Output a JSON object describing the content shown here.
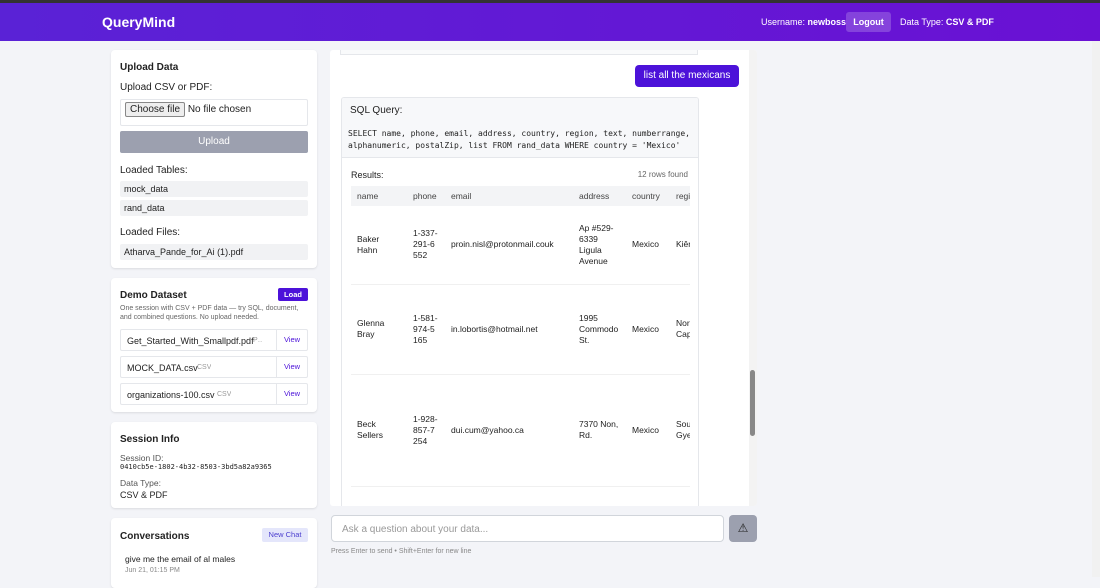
{
  "header": {
    "brand": "QueryMind",
    "username_label": "Username:",
    "username": "newboss",
    "logout": "Logout",
    "data_type_label": "Data Type:",
    "data_type": "CSV & PDF"
  },
  "upload": {
    "title": "Upload Data",
    "label": "Upload CSV or PDF:",
    "choose": "Choose file",
    "no_file": "No file chosen",
    "button": "Upload",
    "tables_label": "Loaded Tables:",
    "tables": [
      "mock_data",
      "rand_data"
    ],
    "files_label": "Loaded Files:",
    "files": [
      "Atharva_Pande_for_Ai (1).pdf"
    ]
  },
  "demo": {
    "title": "Demo Dataset",
    "load": "Load",
    "description": "One session with CSV + PDF data — try SQL, document, and combined questions. No upload needed.",
    "files": [
      {
        "name": "Get_Started_With_Smallpdf.pdf",
        "kind": "PDF",
        "action": "View"
      },
      {
        "name": "MOCK_DATA.csv",
        "kind": "CSV",
        "action": "View"
      },
      {
        "name": "organizations-100.csv",
        "kind": "CSV",
        "action": "View"
      }
    ]
  },
  "session": {
    "title": "Session Info",
    "id_label": "Session ID:",
    "id": "0410cb5e-1802-4b32-8503-3bd5a82a9365",
    "type_label": "Data Type:",
    "type": "CSV & PDF"
  },
  "conversations": {
    "title": "Conversations",
    "new_chat": "New Chat",
    "items": [
      {
        "text": "give me the email of al males",
        "time": "Jun 21, 01:15 PM"
      }
    ]
  },
  "chat": {
    "user_message": "list all the mexicans",
    "sql_title": "SQL Query:",
    "sql": "SELECT name, phone, email, address, country, region, text, numberrange, alphanumeric, postalZip, list FROM rand_data WHERE country = 'Mexico'",
    "results_label": "Results:",
    "rows_found": "12 rows found",
    "table": {
      "columns": [
        "name",
        "phone",
        "email",
        "address",
        "country",
        "region"
      ],
      "rows": [
        [
          "Baker Hahn",
          "1-337-291-6552",
          "proin.nisl@protonmail.couk",
          "Ap #529-6339 Ligula Avenue",
          "Mexico",
          "Kiên Giang"
        ],
        [
          "Glenna Bray",
          "1-581-974-5165",
          "in.lobortis@hotmail.net",
          "1995 Commodo St.",
          "Mexico",
          "Northern Cape"
        ],
        [
          "Beck Sellers",
          "1-928-857-7254",
          "dui.cum@yahoo.ca",
          "7370 Non, Rd.",
          "Mexico",
          "South Gyeongsang"
        ]
      ]
    }
  },
  "input": {
    "placeholder": "Ask a question about your data...",
    "hint": "Press Enter to send • Shift+Enter for new line"
  }
}
